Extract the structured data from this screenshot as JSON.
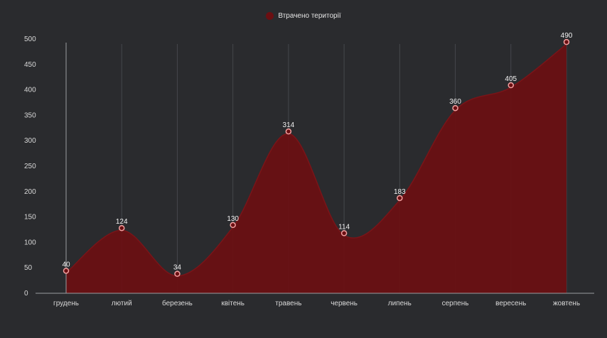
{
  "chart_data": {
    "type": "area",
    "categories": [
      "грудень",
      "лютий",
      "березень",
      "квітень",
      "травень",
      "червень",
      "липень",
      "серпень",
      "вересень",
      "жовтень"
    ],
    "series": [
      {
        "name": "Втрачено території",
        "values": [
          40,
          124,
          34,
          130,
          314,
          114,
          183,
          360,
          405,
          490
        ],
        "color": "#6b0f12",
        "line_color": "#7a1418",
        "marker": "hollow-circle",
        "marker_color": "#f4a0a0"
      }
    ],
    "yticks": [
      0,
      50,
      100,
      150,
      200,
      250,
      300,
      350,
      400,
      450,
      500
    ],
    "ylim": [
      0,
      500
    ],
    "title": "",
    "xlabel": "",
    "ylabel": "",
    "legend": "top-center",
    "grid": "vertical",
    "curve": "smooth",
    "colors": {
      "background": "#2a2b2e",
      "grid": "#45474c",
      "axis": "#9a9ca0",
      "text": "#d8d8d8"
    }
  }
}
